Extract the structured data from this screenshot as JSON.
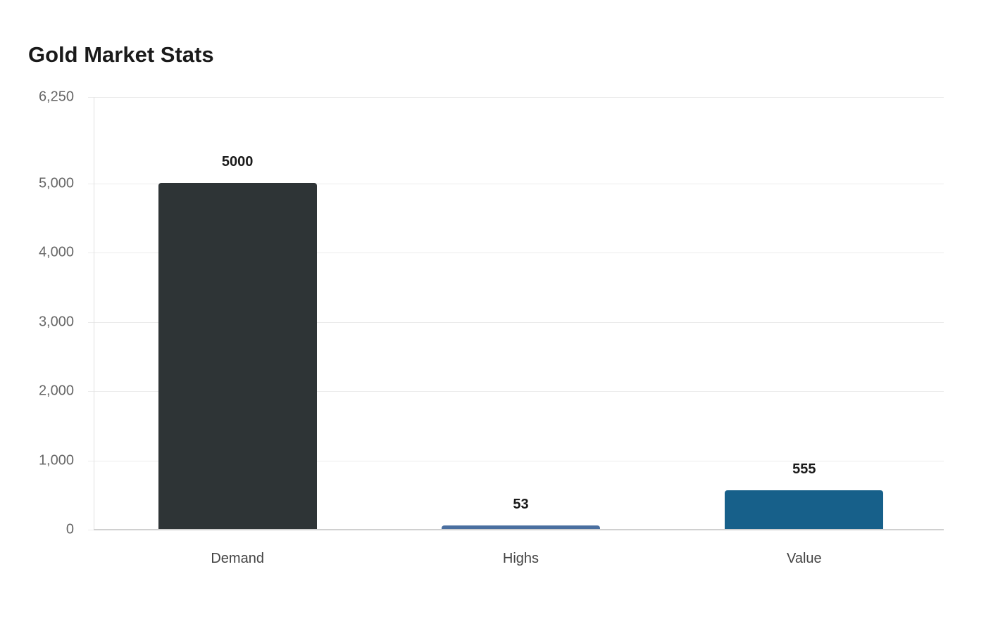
{
  "chart_data": {
    "type": "bar",
    "title": "Gold Market Stats",
    "categories": [
      "Demand",
      "Highs",
      "Value"
    ],
    "values": [
      5000,
      53,
      555
    ],
    "colors": [
      "#2e3436",
      "#4a6fa0",
      "#17608a"
    ],
    "xlabel": "",
    "ylabel": "",
    "ylim": [
      0,
      6250
    ],
    "yticks": [
      0,
      1000,
      2000,
      3000,
      4000,
      5000,
      6250
    ],
    "ytick_labels": [
      "0",
      "1,000",
      "2,000",
      "3,000",
      "4,000",
      "5,000",
      "6,250"
    ],
    "grid": true,
    "legend": null,
    "data_labels": [
      "5000",
      "53",
      "555"
    ]
  }
}
